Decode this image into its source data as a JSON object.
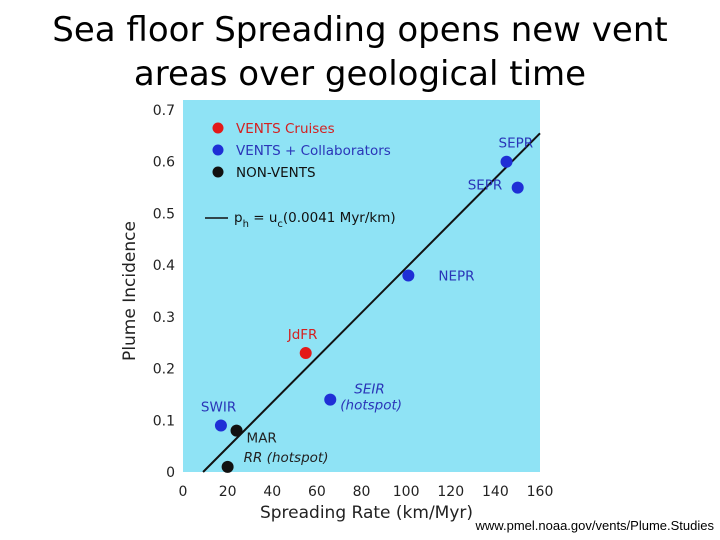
{
  "slide": {
    "title_line1": "Sea floor Spreading opens new vent",
    "title_line2": "areas over geological time",
    "credit": "www.pmel.noaa.gov/vents/Plume.Studies"
  },
  "colors": {
    "plot_bg": "#8fe3f5",
    "vents_cruises": "#e31919",
    "vents_collaborators": "#1f2fd6",
    "non_vents": "#111111",
    "label_blue": "#2a35b8",
    "label_red": "#d42020"
  },
  "chart_data": {
    "type": "scatter",
    "title": "",
    "xlabel": "Spreading Rate (km/Myr)",
    "ylabel": "Plume Incidence",
    "xlim": [
      0,
      160
    ],
    "ylim": [
      0,
      0.7
    ],
    "xticks": [
      "0",
      "20",
      "40",
      "60",
      "80",
      "100",
      "120",
      "140",
      "160"
    ],
    "xtick_values": [
      0,
      20,
      40,
      60,
      80,
      100,
      120,
      140,
      160
    ],
    "yticks": [
      "0",
      "0.1",
      "0.2",
      "0.3",
      "0.4",
      "0.5",
      "0.6",
      "0.7"
    ],
    "ytick_values": [
      0,
      0.1,
      0.2,
      0.3,
      0.4,
      0.5,
      0.6,
      0.7
    ],
    "grid": false,
    "legend_position": "top-left",
    "legend": [
      {
        "name": "VENTS Cruises",
        "color": "#e31919"
      },
      {
        "name": "VENTS + Collaborators",
        "color": "#1f2fd6"
      },
      {
        "name": "NON-VENTS",
        "color": "#111111"
      }
    ],
    "fit_line": {
      "label_parts": [
        "p",
        "h",
        " = u",
        "c",
        "(0.0041 Myr/km)"
      ],
      "x": [
        9,
        160
      ],
      "y": [
        0,
        0.655
      ]
    },
    "points": [
      {
        "x": 145,
        "y": 0.6,
        "group": "VENTS + Collaborators",
        "label": "SEPR",
        "label_style": "normal"
      },
      {
        "x": 150,
        "y": 0.55,
        "group": "VENTS + Collaborators",
        "label": "SEPR",
        "label_style": "normal"
      },
      {
        "x": 101,
        "y": 0.38,
        "group": "VENTS + Collaborators",
        "label": "NEPR",
        "label_style": "normal"
      },
      {
        "x": 55,
        "y": 0.23,
        "group": "VENTS Cruises",
        "label": "JdFR",
        "label_style": "normal"
      },
      {
        "x": 66,
        "y": 0.14,
        "group": "VENTS + Collaborators",
        "label": "SEIR\n(hotspot)",
        "label_style": "italic"
      },
      {
        "x": 17,
        "y": 0.09,
        "group": "VENTS + Collaborators",
        "label": "SWIR",
        "label_style": "normal"
      },
      {
        "x": 24,
        "y": 0.08,
        "group": "NON-VENTS",
        "label": "MAR",
        "label_style": "normal"
      },
      {
        "x": 20,
        "y": 0.01,
        "group": "NON-VENTS",
        "label": "RR (hotspot)",
        "label_style": "italic"
      }
    ]
  }
}
